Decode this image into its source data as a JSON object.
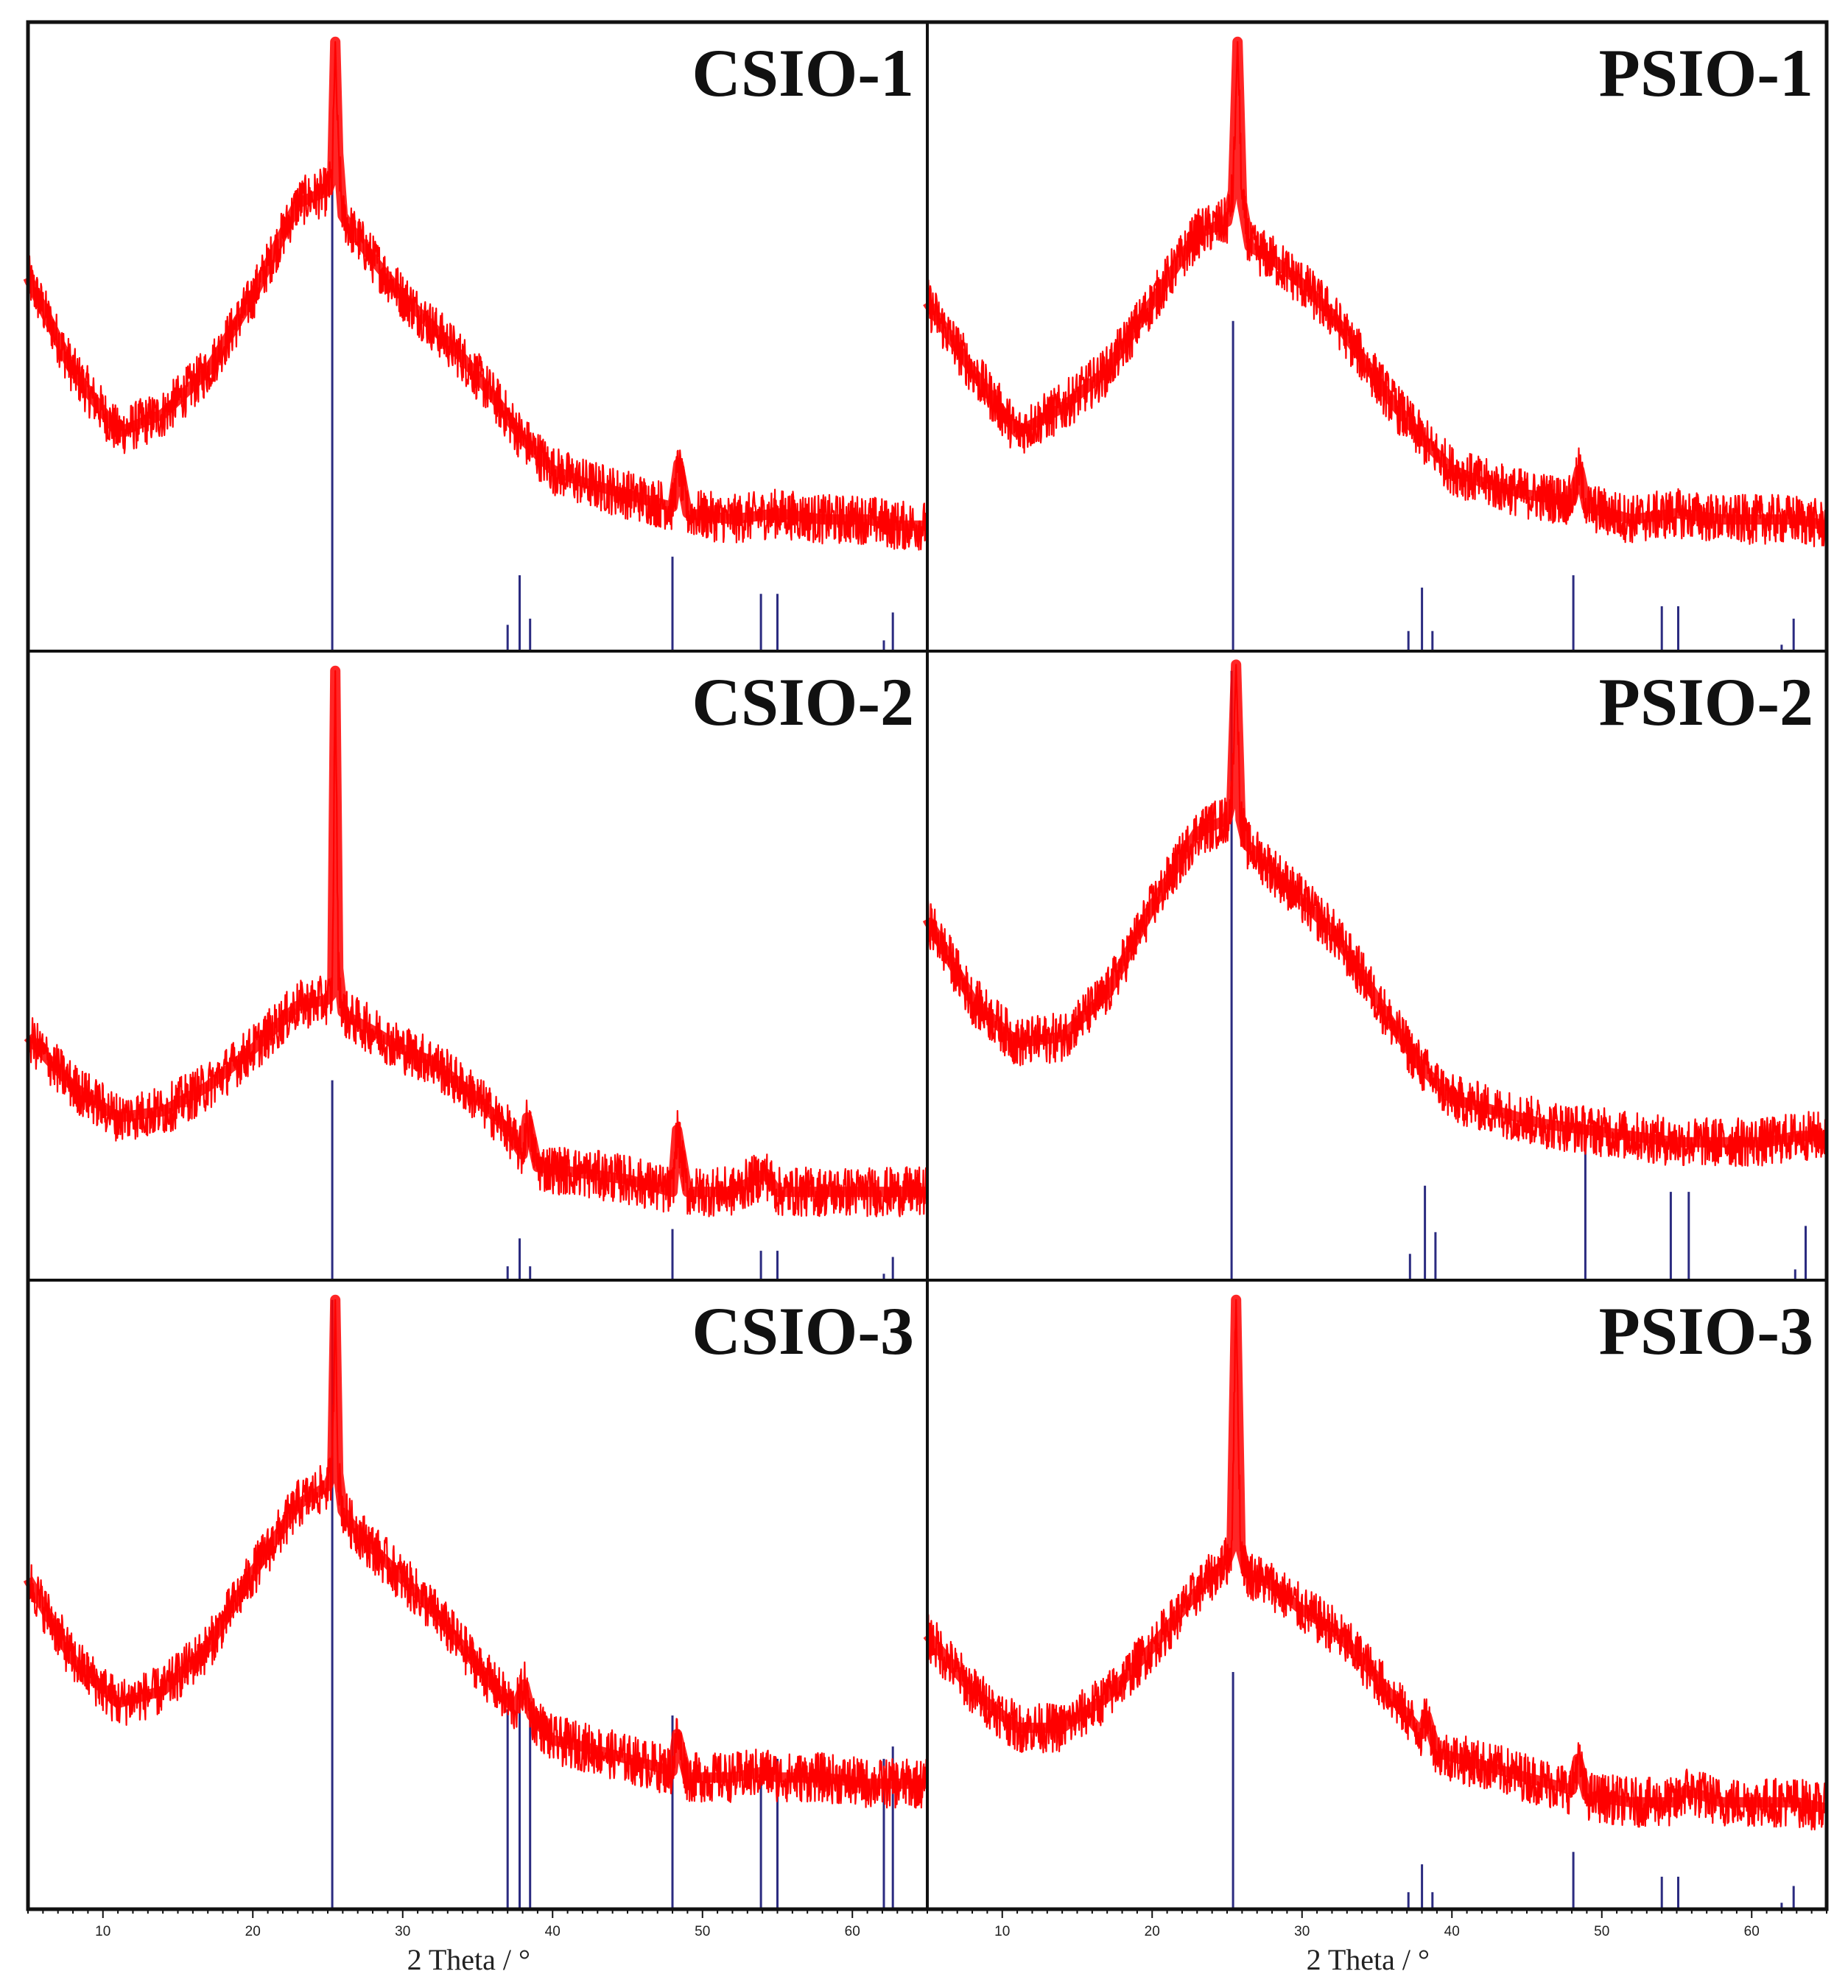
{
  "colors": {
    "pattern": "#ff0000",
    "reference": "#2b2b80",
    "frame": "#111111"
  },
  "axis": {
    "xlabel": "2 Theta / °",
    "xlim": [
      5,
      65
    ],
    "ticks": [
      10,
      20,
      30,
      40,
      50,
      60
    ],
    "minor_step": 1
  },
  "chart_data": [
    {
      "type": "line",
      "title": "CSIO-1",
      "xlabel": "2 Theta / °",
      "xlim": [
        5,
        65
      ],
      "ylim": [
        0,
        100
      ],
      "yaxis_visible": false,
      "pattern": {
        "x": [
          5,
          8,
          11,
          14,
          17,
          20,
          23,
          25,
          25.3,
          25.5,
          25.7,
          26.0,
          26.5,
          28,
          30,
          32,
          34,
          36,
          38,
          40,
          42,
          45,
          48,
          48.4,
          49,
          52,
          55,
          58,
          61,
          63,
          65
        ],
        "y": [
          60,
          45,
          35,
          38,
          45,
          57,
          72,
          74,
          76,
          98,
          80,
          70,
          68,
          63,
          57,
          52,
          47,
          41,
          34,
          29,
          27,
          25,
          23,
          30,
          22,
          21,
          22,
          21,
          21,
          20,
          20
        ]
      },
      "reference": {
        "x": [
          25.3,
          37.0,
          37.8,
          38.5,
          48.0,
          53.9,
          55.0,
          62.1,
          62.7
        ],
        "y": [
          75,
          4,
          12,
          5,
          15,
          9,
          9,
          1.5,
          6
        ]
      }
    },
    {
      "type": "line",
      "title": "PSIO-1",
      "xlabel": "2 Theta / °",
      "xlim": [
        5,
        65
      ],
      "ylim": [
        0,
        100
      ],
      "yaxis_visible": false,
      "pattern": {
        "x": [
          5,
          8,
          11,
          14,
          17,
          20,
          23,
          25,
          25.4,
          25.7,
          26.0,
          26.5,
          28,
          30,
          32,
          34,
          36,
          38,
          40,
          42,
          45,
          48,
          48.5,
          49,
          52,
          55,
          58,
          61,
          63,
          65
        ],
        "y": [
          56,
          45,
          35,
          39,
          45,
          56,
          67,
          69,
          74,
          98,
          72,
          65,
          63,
          59,
          54,
          47,
          40,
          34,
          29,
          27,
          25,
          24,
          29,
          23,
          21,
          22,
          21,
          21,
          21,
          20
        ]
      },
      "reference": {
        "x": [
          25.4,
          37.1,
          38.0,
          38.7,
          48.1,
          54.0,
          55.1,
          62.0,
          62.8
        ],
        "y": [
          53,
          3,
          10,
          3,
          12,
          7,
          7,
          0.8,
          5
        ]
      }
    },
    {
      "type": "line",
      "title": "CSIO-2",
      "xlabel": "2 Theta / °",
      "xlim": [
        5,
        65
      ],
      "ylim": [
        0,
        100
      ],
      "yaxis_visible": false,
      "pattern": {
        "x": [
          5,
          8,
          11,
          14,
          17,
          20,
          23,
          25,
          25.3,
          25.5,
          25.7,
          26.0,
          26.5,
          28,
          30,
          32,
          35,
          37,
          38,
          38.3,
          39,
          42,
          45,
          48,
          48.3,
          49,
          52,
          54.2,
          55,
          58,
          61,
          63,
          65
        ],
        "y": [
          39,
          31,
          26,
          27,
          31,
          37,
          44,
          45,
          46,
          98,
          50,
          43,
          42,
          40,
          37,
          35,
          29,
          24,
          20,
          26,
          18,
          17,
          16,
          14,
          24,
          14,
          14,
          17,
          14,
          14,
          14,
          14,
          14
        ]
      },
      "reference": {
        "x": [
          25.3,
          37.0,
          37.8,
          38.5,
          48.0,
          53.9,
          55.0,
          62.1,
          62.7
        ],
        "y": [
          32,
          2,
          6.5,
          2,
          8,
          4.5,
          4.5,
          0.8,
          3.5
        ]
      }
    },
    {
      "type": "line",
      "title": "PSIO-2",
      "xlabel": "2 Theta / °",
      "xlim": [
        5,
        65
      ],
      "ylim": [
        0,
        100
      ],
      "yaxis_visible": false,
      "pattern": {
        "x": [
          5,
          8,
          11,
          14,
          17,
          20,
          23,
          25,
          25.3,
          25.6,
          25.9,
          26.3,
          28,
          30,
          32,
          34,
          36,
          38,
          40,
          43,
          46,
          49,
          52,
          55,
          58,
          61,
          63,
          65
        ],
        "y": [
          58,
          45,
          38,
          39,
          46,
          60,
          72,
          74,
          77,
          99,
          74,
          70,
          66,
          61,
          56,
          49,
          41,
          34,
          29,
          27,
          25,
          24,
          23,
          22,
          22,
          22,
          23,
          23
        ]
      },
      "reference": {
        "x": [
          25.3,
          37.2,
          38.2,
          38.9,
          48.9,
          54.6,
          55.8,
          62.9,
          63.6
        ],
        "y": [
          98,
          4,
          15,
          7.5,
          23,
          14,
          14,
          1.5,
          8.5
        ]
      }
    },
    {
      "type": "line",
      "title": "CSIO-3",
      "xlabel": "2 Theta / °",
      "xlim": [
        5,
        65
      ],
      "ylim": [
        0,
        100
      ],
      "yaxis_visible": false,
      "pattern": {
        "x": [
          5,
          8,
          11,
          14,
          17,
          20,
          23,
          25,
          25.3,
          25.5,
          25.7,
          26.0,
          26.5,
          28,
          30,
          32,
          34,
          36,
          37.5,
          38.1,
          38.6,
          40,
          42,
          45,
          48,
          48.3,
          49,
          52,
          54.2,
          55,
          58,
          61,
          63,
          65
        ],
        "y": [
          53,
          40,
          33,
          35,
          42,
          54,
          65,
          68,
          70,
          98,
          70,
          64,
          62,
          58,
          53,
          48,
          42,
          36,
          32,
          36,
          31,
          27,
          26,
          24,
          22,
          28,
          21,
          21,
          22,
          21,
          21,
          20,
          20,
          20
        ]
      },
      "reference": {
        "x": [
          25.3,
          37.0,
          37.8,
          38.5,
          48.0,
          53.9,
          55.0,
          62.1,
          62.7
        ],
        "y": [
          98,
          32,
          36,
          32,
          31,
          24,
          24,
          24,
          26
        ]
      }
    },
    {
      "type": "line",
      "title": "PSIO-3",
      "xlabel": "2 Theta / °",
      "xlim": [
        5,
        65
      ],
      "ylim": [
        0,
        100
      ],
      "yaxis_visible": false,
      "pattern": {
        "x": [
          5,
          8,
          11,
          14,
          17,
          20,
          23,
          25,
          25.3,
          25.6,
          25.9,
          26.3,
          28,
          30,
          32,
          34,
          36,
          38,
          38.3,
          39,
          42,
          45,
          48,
          48.4,
          49,
          52,
          55,
          55.6,
          58,
          61,
          63,
          65
        ],
        "y": [
          44,
          35,
          29,
          29,
          34,
          42,
          51,
          56,
          58,
          98,
          58,
          54,
          52,
          48,
          45,
          40,
          34,
          28,
          31,
          25,
          23,
          21,
          19,
          24,
          18,
          17,
          17,
          19,
          17,
          17,
          17,
          16
        ]
      },
      "reference": {
        "x": [
          25.4,
          37.1,
          38.0,
          38.7,
          48.1,
          54.0,
          55.1,
          62.0,
          62.8
        ],
        "y": [
          38,
          2.5,
          7,
          2.5,
          9,
          5,
          5,
          0.8,
          3.5
        ]
      }
    }
  ]
}
